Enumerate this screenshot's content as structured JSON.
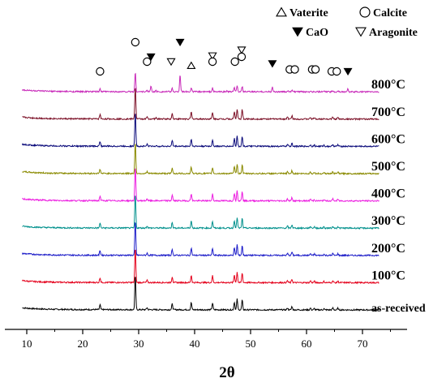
{
  "chart_data": {
    "type": "line",
    "xlabel": "2θ",
    "ylabel": "",
    "xlim": [
      5,
      77
    ],
    "xticks": [
      10,
      20,
      30,
      40,
      50,
      60,
      70
    ],
    "legend": [
      {
        "symbol": "open-triangle-up",
        "label": "Vaterite",
        "color": "#000000"
      },
      {
        "symbol": "open-circle",
        "label": "Calcite",
        "color": "#000000"
      },
      {
        "symbol": "filled-triangle-down",
        "label": "CaO",
        "color": "#000000"
      },
      {
        "symbol": "open-triangle-down",
        "label": "Aragonite",
        "color": "#000000"
      }
    ],
    "series": [
      {
        "name": "as-received",
        "color": "#000000",
        "baseline": 0,
        "amp": 1.0,
        "cao": false,
        "aragonite": 0
      },
      {
        "name": "100°C",
        "color": "#e4001b",
        "baseline": 1,
        "amp": 1.0,
        "cao": false,
        "aragonite": 0
      },
      {
        "name": "200°C",
        "color": "#1b1bc8",
        "baseline": 2,
        "amp": 1.0,
        "cao": false,
        "aragonite": 0
      },
      {
        "name": "300°C",
        "color": "#00908c",
        "baseline": 3,
        "amp": 1.0,
        "cao": false,
        "aragonite": 0
      },
      {
        "name": "400°C",
        "color": "#ec1ce0",
        "baseline": 4,
        "amp": 1.0,
        "cao": false,
        "aragonite": 0
      },
      {
        "name": "500°C",
        "color": "#8a8a00",
        "baseline": 5,
        "amp": 0.9,
        "cao": false,
        "aragonite": 0
      },
      {
        "name": "600°C",
        "color": "#0a0a7a",
        "baseline": 6,
        "amp": 1.0,
        "cao": false,
        "aragonite": 0
      },
      {
        "name": "700°C",
        "color": "#7a0d24",
        "baseline": 7,
        "amp": 0.95,
        "cao": false,
        "aragonite": 0.3
      },
      {
        "name": "800°C",
        "color": "#c829b9",
        "baseline": 8,
        "amp": 0.55,
        "cao": true,
        "aragonite": 0.3
      }
    ],
    "calcite_peaks": [
      {
        "x": 23.1,
        "h": 0.5
      },
      {
        "x": 29.4,
        "h": 3.6
      },
      {
        "x": 31.5,
        "h": 0.22
      },
      {
        "x": 36.0,
        "h": 0.6
      },
      {
        "x": 39.4,
        "h": 0.75
      },
      {
        "x": 43.2,
        "h": 0.7
      },
      {
        "x": 47.1,
        "h": 0.8
      },
      {
        "x": 47.6,
        "h": 1.1
      },
      {
        "x": 48.5,
        "h": 1.0
      },
      {
        "x": 56.6,
        "h": 0.2
      },
      {
        "x": 57.4,
        "h": 0.35
      },
      {
        "x": 60.7,
        "h": 0.18
      },
      {
        "x": 61.4,
        "h": 0.14
      },
      {
        "x": 63.1,
        "h": 0.12
      },
      {
        "x": 64.7,
        "h": 0.2
      },
      {
        "x": 65.6,
        "h": 0.17
      }
    ],
    "cao_peaks": [
      {
        "x": 32.2,
        "h": 0.6
      },
      {
        "x": 37.4,
        "h": 1.8
      },
      {
        "x": 53.9,
        "h": 0.5
      },
      {
        "x": 67.4,
        "h": 0.3
      }
    ],
    "aragonite_peaks": [
      {
        "x": 33.1,
        "h": 0.35
      },
      {
        "x": 45.8,
        "h": 0.3
      }
    ],
    "markers": [
      {
        "symbol": "open-circle",
        "x": 23.1,
        "level": 0
      },
      {
        "symbol": "open-circle",
        "x": 29.4,
        "level": 3
      },
      {
        "symbol": "filled-triangle-down",
        "x": 37.4,
        "level": 3
      },
      {
        "symbol": "open-circle",
        "x": 31.5,
        "level": 1
      },
      {
        "symbol": "filled-triangle-down",
        "x": 32.2,
        "level": 1.5
      },
      {
        "symbol": "open-triangle-down",
        "x": 35.8,
        "level": 1
      },
      {
        "symbol": "open-triangle-up",
        "x": 39.4,
        "level": 0.6
      },
      {
        "symbol": "open-triangle-down",
        "x": 43.2,
        "level": 1.6
      },
      {
        "symbol": "open-circle",
        "x": 43.2,
        "level": 1
      },
      {
        "symbol": "open-circle",
        "x": 47.2,
        "level": 1
      },
      {
        "symbol": "open-triangle-down",
        "x": 48.4,
        "level": 2.2
      },
      {
        "symbol": "open-circle",
        "x": 48.4,
        "level": 1.5
      },
      {
        "symbol": "filled-triangle-down",
        "x": 53.9,
        "level": 0.8
      },
      {
        "symbol": "open-circle",
        "x": 57.0,
        "level": 0.2
      },
      {
        "symbol": "open-circle",
        "x": 57.9,
        "level": 0.2
      },
      {
        "symbol": "open-circle",
        "x": 61.0,
        "level": 0.2
      },
      {
        "symbol": "open-circle",
        "x": 61.6,
        "level": 0.2
      },
      {
        "symbol": "open-circle",
        "x": 64.5,
        "level": 0
      },
      {
        "symbol": "open-circle",
        "x": 65.4,
        "level": 0
      },
      {
        "symbol": "filled-triangle-down",
        "x": 67.4,
        "level": 0
      }
    ],
    "grid": false,
    "legend_placement": "top-right"
  }
}
